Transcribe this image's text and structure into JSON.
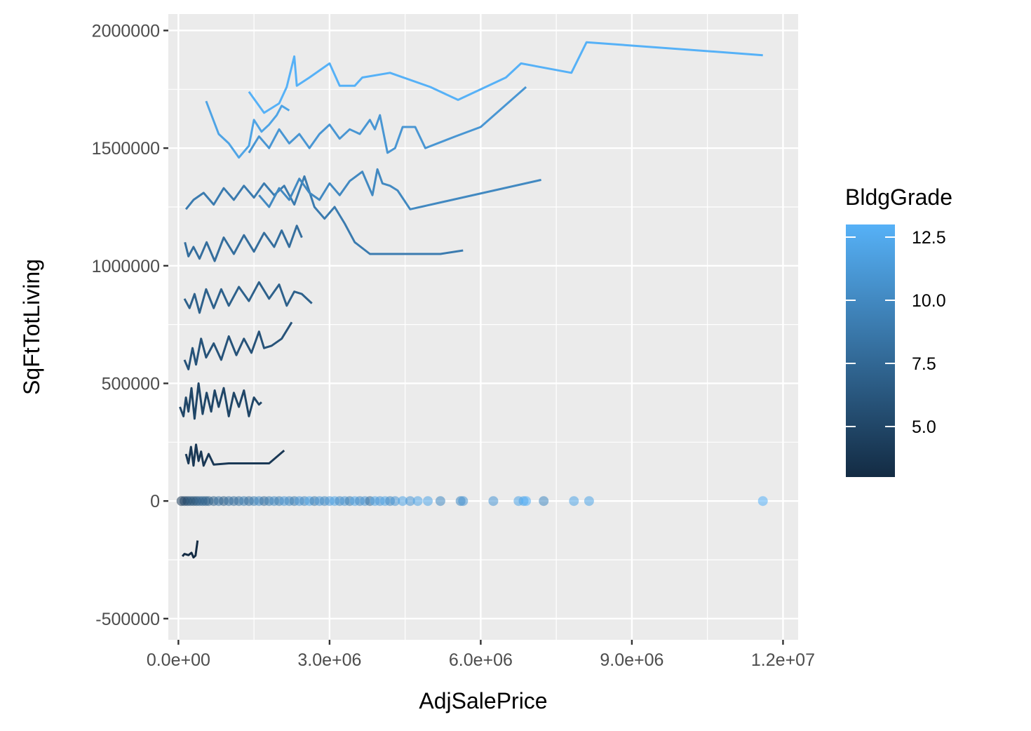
{
  "chart_data": {
    "type": "scatter",
    "xlabel": "AdjSalePrice",
    "ylabel": "SqFtTotLiving",
    "xlim": [
      -200000,
      12300000
    ],
    "ylim": [
      -590000,
      2070000
    ],
    "x_ticks": [
      {
        "value": 0,
        "label": "0.0e+00"
      },
      {
        "value": 3000000,
        "label": "3.0e+06"
      },
      {
        "value": 6000000,
        "label": "6.0e+06"
      },
      {
        "value": 9000000,
        "label": "9.0e+06"
      },
      {
        "value": 12000000,
        "label": "1.2e+07"
      }
    ],
    "y_ticks": [
      {
        "value": -500000,
        "label": "-500000"
      },
      {
        "value": 0,
        "label": "0"
      },
      {
        "value": 500000,
        "label": "500000"
      },
      {
        "value": 1000000,
        "label": "1000000"
      },
      {
        "value": 1500000,
        "label": "1500000"
      },
      {
        "value": 2000000,
        "label": "2000000"
      }
    ],
    "grid": true,
    "legend": {
      "title": "BldgGrade",
      "placement": "right",
      "type": "colorbar",
      "range": [
        3,
        13
      ],
      "low_color": "#132B43",
      "high_color": "#56B1F7",
      "ticks": [
        {
          "value": 5.0,
          "label": "5.0"
        },
        {
          "value": 7.5,
          "label": "7.5"
        },
        {
          "value": 10.0,
          "label": "10.0"
        },
        {
          "value": 12.5,
          "label": "12.5"
        }
      ]
    },
    "lines": [
      {
        "grade": 3,
        "points": [
          [
            80000,
            -235000
          ],
          [
            120000,
            -225000
          ],
          [
            200000,
            -230000
          ],
          [
            260000,
            -220000
          ],
          [
            300000,
            -240000
          ],
          [
            340000,
            -232000
          ],
          [
            380000,
            -168000
          ]
        ]
      },
      {
        "grade": 4,
        "points": [
          [
            150000,
            200000
          ],
          [
            200000,
            160000
          ],
          [
            250000,
            230000
          ],
          [
            300000,
            150000
          ],
          [
            350000,
            240000
          ],
          [
            400000,
            170000
          ],
          [
            450000,
            210000
          ],
          [
            500000,
            150000
          ],
          [
            600000,
            200000
          ],
          [
            700000,
            155000
          ],
          [
            1000000,
            160000
          ],
          [
            1300000,
            160000
          ],
          [
            1800000,
            160000
          ],
          [
            2100000,
            215000
          ]
        ]
      },
      {
        "grade": 5,
        "points": [
          [
            30000,
            400000
          ],
          [
            100000,
            360000
          ],
          [
            150000,
            440000
          ],
          [
            200000,
            380000
          ],
          [
            260000,
            480000
          ],
          [
            320000,
            350000
          ],
          [
            400000,
            500000
          ],
          [
            480000,
            370000
          ],
          [
            560000,
            460000
          ],
          [
            650000,
            380000
          ],
          [
            720000,
            470000
          ],
          [
            800000,
            400000
          ],
          [
            900000,
            480000
          ],
          [
            1000000,
            360000
          ],
          [
            1100000,
            460000
          ],
          [
            1200000,
            400000
          ],
          [
            1300000,
            470000
          ],
          [
            1400000,
            360000
          ],
          [
            1500000,
            440000
          ],
          [
            1600000,
            410000
          ],
          [
            1650000,
            420000
          ]
        ]
      },
      {
        "grade": 6,
        "points": [
          [
            120000,
            600000
          ],
          [
            200000,
            560000
          ],
          [
            280000,
            650000
          ],
          [
            350000,
            580000
          ],
          [
            450000,
            690000
          ],
          [
            550000,
            610000
          ],
          [
            700000,
            670000
          ],
          [
            850000,
            600000
          ],
          [
            1000000,
            700000
          ],
          [
            1150000,
            620000
          ],
          [
            1300000,
            690000
          ],
          [
            1450000,
            630000
          ],
          [
            1600000,
            720000
          ],
          [
            1700000,
            650000
          ],
          [
            1850000,
            660000
          ],
          [
            2050000,
            690000
          ],
          [
            2250000,
            760000
          ]
        ]
      },
      {
        "grade": 7,
        "points": [
          [
            120000,
            860000
          ],
          [
            220000,
            820000
          ],
          [
            320000,
            880000
          ],
          [
            420000,
            800000
          ],
          [
            550000,
            900000
          ],
          [
            700000,
            820000
          ],
          [
            850000,
            900000
          ],
          [
            1000000,
            830000
          ],
          [
            1200000,
            910000
          ],
          [
            1400000,
            850000
          ],
          [
            1600000,
            930000
          ],
          [
            1800000,
            860000
          ],
          [
            2000000,
            920000
          ],
          [
            2150000,
            830000
          ],
          [
            2300000,
            890000
          ],
          [
            2450000,
            880000
          ],
          [
            2650000,
            840000
          ]
        ]
      },
      {
        "grade": 8,
        "points": [
          [
            130000,
            1100000
          ],
          [
            200000,
            1040000
          ],
          [
            300000,
            1080000
          ],
          [
            420000,
            1030000
          ],
          [
            560000,
            1100000
          ],
          [
            720000,
            1020000
          ],
          [
            900000,
            1120000
          ],
          [
            1100000,
            1050000
          ],
          [
            1300000,
            1130000
          ],
          [
            1500000,
            1060000
          ],
          [
            1700000,
            1140000
          ],
          [
            1900000,
            1080000
          ],
          [
            2050000,
            1150000
          ],
          [
            2200000,
            1080000
          ],
          [
            2350000,
            1170000
          ],
          [
            2450000,
            1120000
          ]
        ]
      },
      {
        "grade": 9,
        "points": [
          [
            150000,
            1240000
          ],
          [
            300000,
            1280000
          ],
          [
            500000,
            1310000
          ],
          [
            700000,
            1260000
          ],
          [
            900000,
            1330000
          ],
          [
            1100000,
            1280000
          ],
          [
            1300000,
            1340000
          ],
          [
            1500000,
            1290000
          ],
          [
            1700000,
            1350000
          ],
          [
            1900000,
            1300000
          ],
          [
            2100000,
            1340000
          ],
          [
            2300000,
            1260000
          ],
          [
            2500000,
            1380000
          ],
          [
            2700000,
            1250000
          ],
          [
            2900000,
            1200000
          ],
          [
            3100000,
            1250000
          ],
          [
            3300000,
            1180000
          ],
          [
            3500000,
            1100000
          ],
          [
            3800000,
            1050000
          ],
          [
            4300000,
            1050000
          ],
          [
            5200000,
            1050000
          ],
          [
            5650000,
            1065000
          ]
        ]
      },
      {
        "grade": 10,
        "points": [
          [
            1600000,
            1300000
          ],
          [
            1800000,
            1250000
          ],
          [
            2000000,
            1330000
          ],
          [
            2200000,
            1280000
          ],
          [
            2400000,
            1370000
          ],
          [
            2600000,
            1310000
          ],
          [
            2800000,
            1280000
          ],
          [
            3000000,
            1350000
          ],
          [
            3200000,
            1300000
          ],
          [
            3400000,
            1360000
          ],
          [
            3650000,
            1400000
          ],
          [
            3850000,
            1300000
          ],
          [
            3950000,
            1410000
          ],
          [
            4050000,
            1350000
          ],
          [
            4200000,
            1340000
          ],
          [
            4350000,
            1320000
          ],
          [
            4600000,
            1240000
          ],
          [
            7200000,
            1365000
          ]
        ]
      },
      {
        "grade": 11,
        "points": [
          [
            1400000,
            1480000
          ],
          [
            1600000,
            1550000
          ],
          [
            1800000,
            1500000
          ],
          [
            2000000,
            1580000
          ],
          [
            2200000,
            1520000
          ],
          [
            2400000,
            1560000
          ],
          [
            2600000,
            1500000
          ],
          [
            2800000,
            1560000
          ],
          [
            3000000,
            1600000
          ],
          [
            3200000,
            1540000
          ],
          [
            3400000,
            1580000
          ],
          [
            3600000,
            1560000
          ],
          [
            3800000,
            1620000
          ],
          [
            3900000,
            1580000
          ],
          [
            4000000,
            1640000
          ],
          [
            4150000,
            1480000
          ],
          [
            4300000,
            1500000
          ],
          [
            4450000,
            1590000
          ],
          [
            4700000,
            1590000
          ],
          [
            4900000,
            1500000
          ],
          [
            5500000,
            1550000
          ],
          [
            6000000,
            1590000
          ],
          [
            6900000,
            1760000
          ]
        ]
      },
      {
        "grade": 12,
        "points": [
          [
            550000,
            1700000
          ],
          [
            800000,
            1560000
          ],
          [
            1000000,
            1520000
          ],
          [
            1200000,
            1460000
          ],
          [
            1400000,
            1510000
          ],
          [
            1500000,
            1620000
          ],
          [
            1650000,
            1570000
          ],
          [
            1800000,
            1600000
          ],
          [
            1950000,
            1640000
          ],
          [
            2050000,
            1680000
          ],
          [
            2200000,
            1660000
          ]
        ]
      },
      {
        "grade": 13,
        "points": [
          [
            1400000,
            1740000
          ],
          [
            1700000,
            1650000
          ],
          [
            2000000,
            1690000
          ],
          [
            2150000,
            1760000
          ],
          [
            2300000,
            1890000
          ],
          [
            2350000,
            1765000
          ],
          [
            2600000,
            1800000
          ],
          [
            3000000,
            1860000
          ],
          [
            3200000,
            1765000
          ],
          [
            3500000,
            1765000
          ],
          [
            3650000,
            1800000
          ],
          [
            4200000,
            1820000
          ],
          [
            5000000,
            1760000
          ],
          [
            5550000,
            1705000
          ],
          [
            6500000,
            1800000
          ],
          [
            6800000,
            1860000
          ],
          [
            7800000,
            1820000
          ],
          [
            8100000,
            1950000
          ],
          [
            11600000,
            1895000
          ]
        ]
      }
    ],
    "points": [
      {
        "x": 60000,
        "y": 0,
        "grade": 4
      },
      {
        "x": 120000,
        "y": 0,
        "grade": 5
      },
      {
        "x": 180000,
        "y": 0,
        "grade": 5
      },
      {
        "x": 240000,
        "y": 0,
        "grade": 6
      },
      {
        "x": 300000,
        "y": 0,
        "grade": 6
      },
      {
        "x": 360000,
        "y": 0,
        "grade": 6
      },
      {
        "x": 420000,
        "y": 0,
        "grade": 7
      },
      {
        "x": 480000,
        "y": 0,
        "grade": 7
      },
      {
        "x": 540000,
        "y": 0,
        "grade": 7
      },
      {
        "x": 600000,
        "y": 0,
        "grade": 7
      },
      {
        "x": 700000,
        "y": 0,
        "grade": 7
      },
      {
        "x": 800000,
        "y": 0,
        "grade": 8
      },
      {
        "x": 900000,
        "y": 0,
        "grade": 7
      },
      {
        "x": 1000000,
        "y": 0,
        "grade": 8
      },
      {
        "x": 1100000,
        "y": 0,
        "grade": 8
      },
      {
        "x": 1200000,
        "y": 0,
        "grade": 8
      },
      {
        "x": 1300000,
        "y": 0,
        "grade": 9
      },
      {
        "x": 1400000,
        "y": 0,
        "grade": 8
      },
      {
        "x": 1500000,
        "y": 0,
        "grade": 9
      },
      {
        "x": 1600000,
        "y": 0,
        "grade": 10
      },
      {
        "x": 1700000,
        "y": 0,
        "grade": 8
      },
      {
        "x": 1800000,
        "y": 0,
        "grade": 9
      },
      {
        "x": 1900000,
        "y": 0,
        "grade": 10
      },
      {
        "x": 2000000,
        "y": 0,
        "grade": 9
      },
      {
        "x": 2100000,
        "y": 0,
        "grade": 11
      },
      {
        "x": 2200000,
        "y": 0,
        "grade": 10
      },
      {
        "x": 2300000,
        "y": 0,
        "grade": 9
      },
      {
        "x": 2400000,
        "y": 0,
        "grade": 11
      },
      {
        "x": 2500000,
        "y": 0,
        "grade": 10
      },
      {
        "x": 2600000,
        "y": 0,
        "grade": 12
      },
      {
        "x": 2700000,
        "y": 0,
        "grade": 9
      },
      {
        "x": 2800000,
        "y": 0,
        "grade": 11
      },
      {
        "x": 2900000,
        "y": 0,
        "grade": 10
      },
      {
        "x": 3000000,
        "y": 0,
        "grade": 11
      },
      {
        "x": 3100000,
        "y": 0,
        "grade": 12
      },
      {
        "x": 3200000,
        "y": 0,
        "grade": 10
      },
      {
        "x": 3300000,
        "y": 0,
        "grade": 11
      },
      {
        "x": 3400000,
        "y": 0,
        "grade": 9
      },
      {
        "x": 3500000,
        "y": 0,
        "grade": 12
      },
      {
        "x": 3600000,
        "y": 0,
        "grade": 10
      },
      {
        "x": 3700000,
        "y": 0,
        "grade": 11
      },
      {
        "x": 3800000,
        "y": 0,
        "grade": 8
      },
      {
        "x": 3900000,
        "y": 0,
        "grade": 12
      },
      {
        "x": 4000000,
        "y": 0,
        "grade": 11
      },
      {
        "x": 4100000,
        "y": 0,
        "grade": 12
      },
      {
        "x": 4200000,
        "y": 0,
        "grade": 10
      },
      {
        "x": 4300000,
        "y": 0,
        "grade": 11
      },
      {
        "x": 4450000,
        "y": 0,
        "grade": 12
      },
      {
        "x": 4600000,
        "y": 0,
        "grade": 11
      },
      {
        "x": 4750000,
        "y": 0,
        "grade": 12
      },
      {
        "x": 4950000,
        "y": 0,
        "grade": 12
      },
      {
        "x": 5200000,
        "y": 0,
        "grade": 10
      },
      {
        "x": 5600000,
        "y": 0,
        "grade": 10
      },
      {
        "x": 5650000,
        "y": 0,
        "grade": 11
      },
      {
        "x": 6250000,
        "y": 0,
        "grade": 11
      },
      {
        "x": 6750000,
        "y": 0,
        "grade": 12
      },
      {
        "x": 6850000,
        "y": 0,
        "grade": 12
      },
      {
        "x": 6900000,
        "y": 0,
        "grade": 13
      },
      {
        "x": 7250000,
        "y": 0,
        "grade": 10
      },
      {
        "x": 7850000,
        "y": 0,
        "grade": 12
      },
      {
        "x": 8150000,
        "y": 0,
        "grade": 12
      },
      {
        "x": 11600000,
        "y": 0,
        "grade": 13
      }
    ]
  }
}
